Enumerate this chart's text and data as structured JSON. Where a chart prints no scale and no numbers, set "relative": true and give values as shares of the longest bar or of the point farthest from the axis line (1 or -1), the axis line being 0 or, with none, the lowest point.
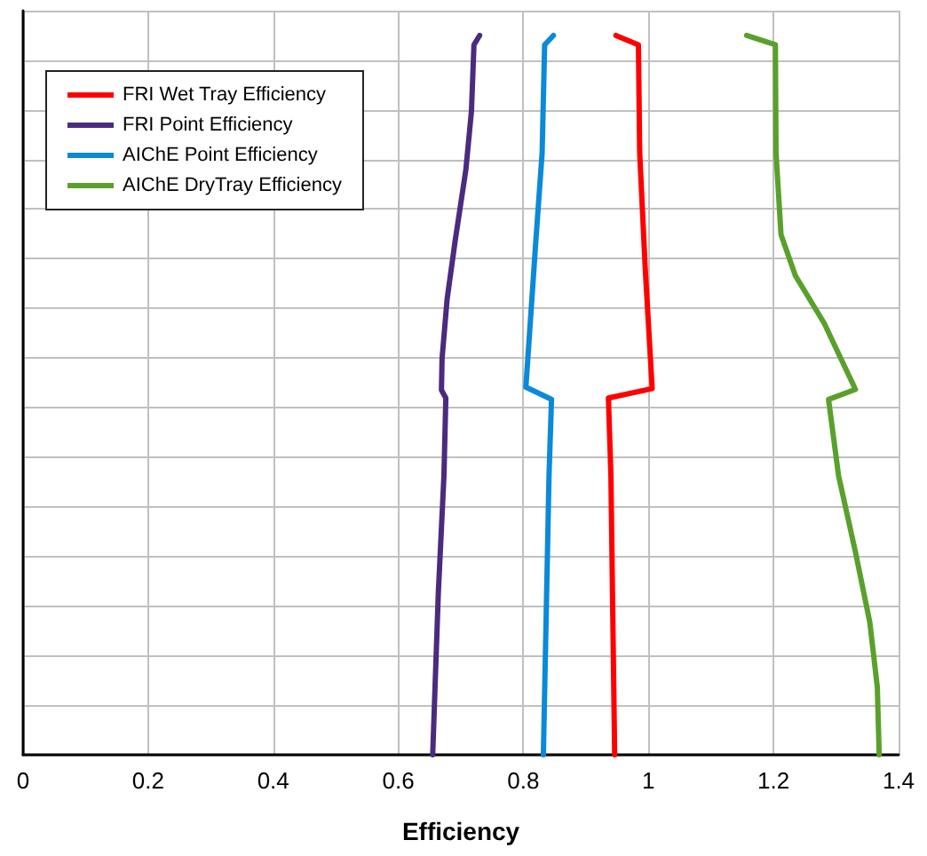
{
  "chart_data": {
    "type": "line",
    "xlabel": "Efficiency",
    "relative": true,
    "xlim": [
      0,
      1.4
    ],
    "xticks": [
      0,
      0.2,
      0.4,
      0.6,
      0.8,
      1,
      1.2,
      1.4
    ],
    "grid": true,
    "legend": "top left",
    "marker": "none",
    "line_style": "solid",
    "series": [
      {
        "name": "FRI Wet Tray Efficiency",
        "color": "#ff0000",
        "x": [
          0.948,
          0.984,
          0.986,
          0.995,
          1.006,
          0.936,
          0.94,
          0.946
        ],
        "values": [
          1,
          0.987,
          0.837,
          0.674,
          0.509,
          0.496,
          0.388,
          0
        ]
      },
      {
        "name": "FRI Point Efficiency",
        "color": "#4b2a80",
        "x": [
          0.73,
          0.721,
          0.717,
          0.708,
          0.691,
          0.678,
          0.67,
          0.669,
          0.676,
          0.673,
          0.664,
          0.655
        ],
        "values": [
          1,
          0.987,
          0.895,
          0.813,
          0.715,
          0.633,
          0.551,
          0.507,
          0.496,
          0.388,
          0.225,
          0
        ]
      },
      {
        "name": "AIChE Point Efficiency",
        "color": "#0a8ad8",
        "x": [
          0.848,
          0.834,
          0.83,
          0.82,
          0.804,
          0.845,
          0.841,
          0.832
        ],
        "values": [
          1,
          0.987,
          0.837,
          0.715,
          0.511,
          0.494,
          0.388,
          0
        ]
      },
      {
        "name": "AIChE DryTray Efficiency",
        "color": "#5aa02c",
        "x": [
          1.157,
          1.203,
          1.204,
          1.212,
          1.235,
          1.281,
          1.331,
          1.288,
          1.304,
          1.331,
          1.354,
          1.366,
          1.369
        ],
        "values": [
          1,
          0.987,
          0.837,
          0.723,
          0.666,
          0.6,
          0.508,
          0.494,
          0.388,
          0.282,
          0.184,
          0.094,
          0
        ]
      }
    ]
  }
}
